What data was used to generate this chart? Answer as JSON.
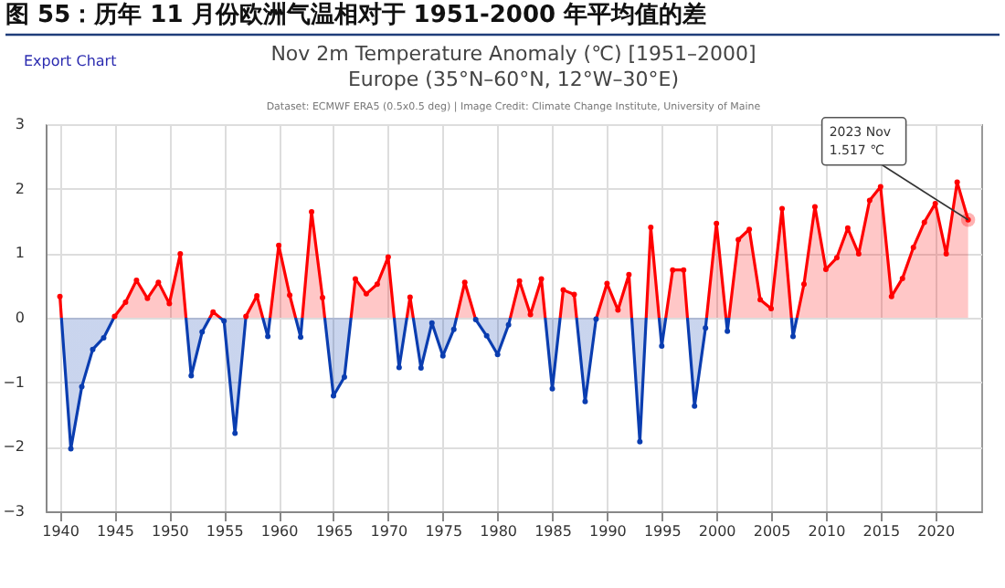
{
  "chart_data": {
    "type": "area",
    "title": "图 55：历年 11 月份欧洲气温相对于 1951-2000 年平均值的差",
    "subtitle": "Nov 2m Temperature Anomaly (℃) [1951–2000]",
    "annotations": [
      "Europe (35°N–60°N, 12°W–30°E)",
      "Dataset: ECMWF ERA5 (0.5x0.5 deg) | Image Credit: Climate Change Institute, University of Maine",
      "Export Chart",
      {
        "text": "2023 Nov\n1.517 ℃",
        "x": 2023,
        "y": 1.517
      }
    ],
    "x": [
      1940,
      1941,
      1942,
      1943,
      1944,
      1945,
      1946,
      1947,
      1948,
      1949,
      1950,
      1951,
      1952,
      1953,
      1954,
      1955,
      1956,
      1957,
      1958,
      1959,
      1960,
      1961,
      1962,
      1963,
      1964,
      1965,
      1966,
      1967,
      1968,
      1969,
      1970,
      1971,
      1972,
      1973,
      1974,
      1975,
      1976,
      1977,
      1978,
      1979,
      1980,
      1981,
      1982,
      1983,
      1984,
      1985,
      1986,
      1987,
      1988,
      1989,
      1990,
      1991,
      1992,
      1993,
      1994,
      1995,
      1996,
      1997,
      1998,
      1999,
      2000,
      2001,
      2002,
      2003,
      2004,
      2005,
      2006,
      2007,
      2008,
      2009,
      2010,
      2011,
      2012,
      2013,
      2014,
      2015,
      2016,
      2017,
      2018,
      2019,
      2020,
      2021,
      2022,
      2023
    ],
    "series": [
      {
        "values": [
          0.33,
          -2.03,
          -1.07,
          -0.49,
          -0.31,
          0.02,
          0.24,
          0.58,
          0.3,
          0.55,
          0.22,
          0.99,
          -0.9,
          -0.22,
          0.09,
          -0.05,
          -1.79,
          0.02,
          0.34,
          -0.29,
          1.12,
          0.35,
          -0.3,
          1.64,
          0.31,
          -1.21,
          -0.92,
          0.6,
          0.37,
          0.52,
          0.94,
          -0.77,
          0.32,
          -0.78,
          -0.08,
          -0.59,
          -0.18,
          0.55,
          -0.03,
          -0.28,
          -0.57,
          -0.11,
          0.57,
          0.05,
          0.6,
          -1.1,
          0.43,
          0.36,
          -1.3,
          -0.02,
          0.53,
          0.12,
          0.67,
          -1.92,
          1.4,
          -0.44,
          0.74,
          0.74,
          -1.37,
          -0.16,
          1.46,
          -0.21,
          1.21,
          1.37,
          0.28,
          0.14,
          1.69,
          -0.29,
          0.52,
          1.72,
          0.75,
          0.93,
          1.39,
          0.99,
          1.82,
          2.03,
          0.33,
          0.61,
          1.09,
          1.48,
          1.77,
          0.99,
          2.1,
          1.517
        ],
        "colors": [
          "#ff0000",
          "#0a3db0",
          "#0a3db0",
          "#0a3db0",
          "#0a3db0",
          "#ff0000",
          "#ff0000",
          "#ff0000",
          "#ff0000",
          "#ff0000",
          "#ff0000",
          "#ff0000",
          "#0a3db0",
          "#0a3db0",
          "#ff0000",
          "#0a3db0",
          "#0a3db0",
          "#ff0000",
          "#ff0000",
          "#0a3db0",
          "#ff0000",
          "#ff0000",
          "#0a3db0",
          "#ff0000",
          "#ff0000",
          "#0a3db0",
          "#0a3db0",
          "#ff0000",
          "#ff0000",
          "#ff0000",
          "#ff0000",
          "#0a3db0",
          "#ff0000",
          "#0a3db0",
          "#0a3db0",
          "#0a3db0",
          "#0a3db0",
          "#ff0000",
          "#0a3db0",
          "#0a3db0",
          "#0a3db0",
          "#0a3db0",
          "#ff0000",
          "#ff0000",
          "#ff0000",
          "#0a3db0",
          "#ff0000",
          "#ff0000",
          "#0a3db0",
          "#0a3db0",
          "#ff0000",
          "#ff0000",
          "#ff0000",
          "#0a3db0",
          "#ff0000",
          "#0a3db0",
          "#ff0000",
          "#ff0000",
          "#0a3db0",
          "#0a3db0",
          "#ff0000",
          "#0a3db0",
          "#ff0000",
          "#ff0000",
          "#ff0000",
          "#ff0000",
          "#ff0000",
          "#0a3db0",
          "#ff0000",
          "#ff0000",
          "#ff0000",
          "#ff0000",
          "#ff0000",
          "#ff0000",
          "#ff0000",
          "#ff0000",
          "#ff0000",
          "#ff0000",
          "#ff0000",
          "#ff0000",
          "#ff0000",
          "#ff0000",
          "#ff0000",
          "#ff0000"
        ]
      }
    ],
    "xlim": [
      1938.7,
      2024.2
    ],
    "xticks": [
      1940,
      1945,
      1950,
      1955,
      1960,
      1965,
      1970,
      1975,
      1980,
      1985,
      1990,
      1995,
      2000,
      2005,
      2010,
      2015,
      2020
    ],
    "ylim": [
      -3,
      3
    ],
    "yticks": [
      -3,
      -2,
      -1,
      0,
      1,
      2,
      3
    ],
    "grid": true,
    "marker": "circle"
  }
}
